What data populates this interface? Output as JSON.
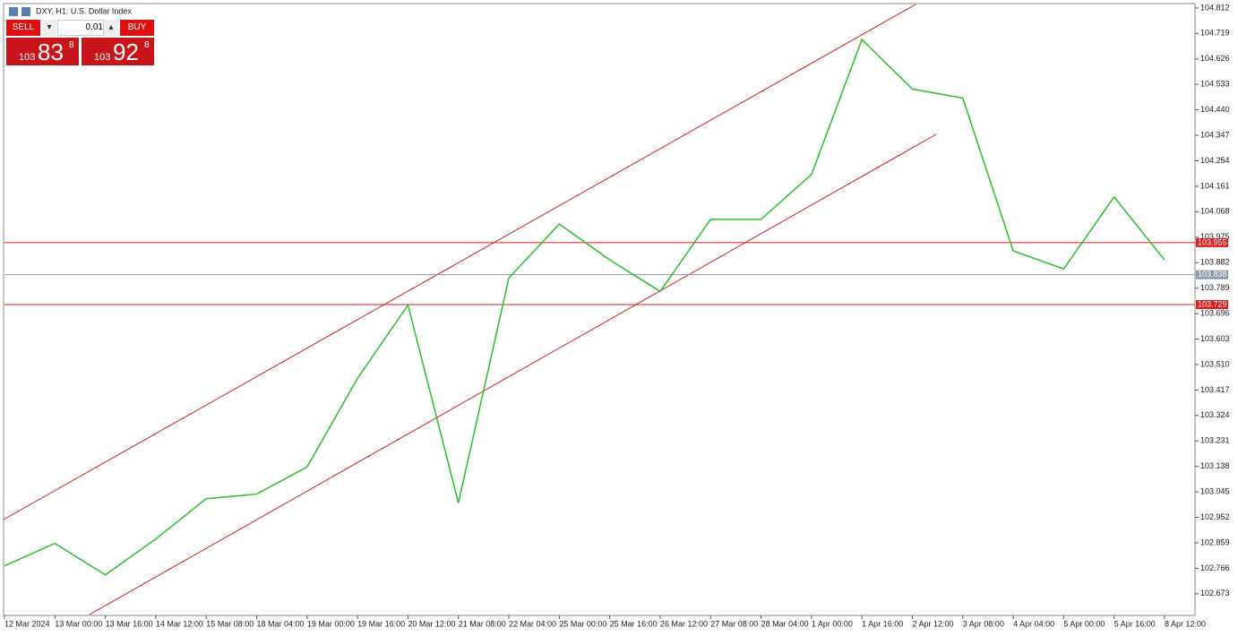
{
  "header": {
    "title": "DXY, H1:  U.S. Dollar Index"
  },
  "trade_panel": {
    "sell": "SELL",
    "lot": "0.01",
    "buy": "BUY",
    "sell_price": {
      "big": "103",
      "main": "83",
      "sup": "8"
    },
    "buy_price": {
      "big": "103",
      "main": "92",
      "sup": "8"
    }
  },
  "chart_data": {
    "type": "line",
    "categories": [
      "12 Mar 2024",
      "13 Mar 00:00",
      "13 Mar 16:00",
      "14 Mar 12:00",
      "15 Mar 08:00",
      "18 Mar 04:00",
      "19 Mar 00:00",
      "19 Mar 16:00",
      "20 Mar 12:00",
      "21 Mar 08:00",
      "22 Mar 04:00",
      "25 Mar 00:00",
      "25 Mar 16:00",
      "26 Mar 12:00",
      "27 Mar 08:00",
      "28 Mar 04:00",
      "1 Apr 00:00",
      "1 Apr 16:00",
      "2 Apr 12:00",
      "3 Apr 08:00",
      "4 Apr 04:00",
      "5 Apr 00:00",
      "5 Apr 16:00",
      "8 Apr 12:00"
    ],
    "series": [
      {
        "name": "DXY",
        "color": "#2bbf2b",
        "values": [
          102.775,
          102.857,
          102.742,
          102.873,
          103.02,
          103.037,
          103.136,
          103.46,
          103.727,
          103.005,
          103.826,
          104.023,
          103.892,
          103.777,
          104.04,
          104.04,
          104.204,
          104.697,
          104.516,
          104.483,
          103.925,
          103.859,
          104.122,
          103.892
        ]
      }
    ],
    "ylim": [
      102.594,
      104.828
    ],
    "yticks": [
      102.673,
      102.766,
      102.859,
      102.952,
      103.045,
      103.138,
      103.231,
      103.324,
      103.417,
      {
        "value": 103.51,
        "label": "103.510"
      },
      103.603,
      103.696,
      103.789,
      103.882,
      103.975,
      104.068,
      104.161,
      104.254,
      104.347,
      {
        "value": 104.44,
        "label": "104.440"
      },
      104.533,
      104.626,
      104.719,
      104.812
    ],
    "levels": [
      {
        "value": 103.955,
        "color": "#e01e1e"
      },
      {
        "value": 103.838,
        "color": "#8a9aa8"
      },
      {
        "value": 103.729,
        "color": "#e01e1e"
      }
    ]
  }
}
